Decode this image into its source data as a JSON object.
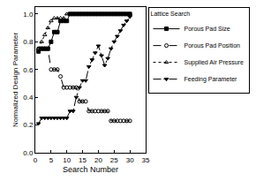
{
  "chart_data": {
    "type": "line",
    "x_label": "Search Number",
    "y_label": "Normalized Design Parameter",
    "legend_title": "Lattice Search",
    "legend": "right",
    "grid": false,
    "xlim": [
      0,
      35
    ],
    "xticks": [
      0,
      5,
      10,
      15,
      20,
      25,
      30,
      35
    ],
    "ylim": [
      0,
      1.05
    ],
    "yticks": [
      {
        "value": 0,
        "label": "0.0"
      },
      0.2,
      0.4,
      0.6,
      0.8,
      {
        "value": 1,
        "label": "1.0"
      }
    ],
    "x": [
      1,
      2,
      3,
      4,
      5,
      6,
      7,
      8,
      9,
      10,
      11,
      12,
      13,
      14,
      15,
      16,
      17,
      18,
      19,
      20,
      21,
      22,
      23,
      24,
      25,
      26,
      27,
      28,
      29,
      30
    ],
    "series": [
      {
        "name": "Porous Pad Size",
        "color": "#000000",
        "marker": "square",
        "line_style": "solid",
        "values": [
          0.73,
          0.75,
          0.75,
          0.75,
          0.8,
          0.87,
          0.87,
          0.95,
          0.95,
          0.95,
          1,
          1,
          1,
          1,
          1,
          1,
          1,
          1,
          1,
          1,
          1,
          1,
          1,
          1,
          1,
          1,
          1,
          1,
          1,
          1
        ]
      },
      {
        "name": "Porous Pad Position",
        "color": "#000000",
        "marker": "circle-open",
        "line_style": "dash",
        "values": [
          0.75,
          0.75,
          0.75,
          0.75,
          0.6,
          0.6,
          0.6,
          0.55,
          0.47,
          0.47,
          0.47,
          0.47,
          0.47,
          0.37,
          0.37,
          0.37,
          0.3,
          0.3,
          0.3,
          0.3,
          0.3,
          0.3,
          0.3,
          0.23,
          0.23,
          0.23,
          0.23,
          0.23,
          0.23,
          0.23
        ]
      },
      {
        "name": "Supplied Air Pressure",
        "color": "#000000",
        "marker": "triangle-up-open",
        "line_style": "dot",
        "values": [
          0.75,
          0.8,
          0.85,
          0.9,
          0.95,
          0.97,
          0.97,
          0.97,
          0.97,
          1,
          1,
          1,
          1,
          1,
          1,
          1,
          1,
          1,
          1,
          1,
          1,
          1,
          1,
          1,
          1,
          1,
          1,
          1,
          1,
          1
        ]
      },
      {
        "name": "Feeding Parameter",
        "color": "#000000",
        "marker": "triangle-down",
        "line_style": "dashdot",
        "values": [
          0.21,
          0.25,
          0.25,
          0.25,
          0.25,
          0.25,
          0.25,
          0.25,
          0.25,
          0.25,
          0.3,
          0.3,
          0.4,
          0.47,
          0.52,
          0.52,
          0.62,
          0.67,
          0.72,
          0.77,
          0.7,
          0.63,
          0.68,
          0.75,
          0.8,
          0.84,
          0.88,
          0.92,
          0.95,
          0.98
        ]
      }
    ]
  }
}
